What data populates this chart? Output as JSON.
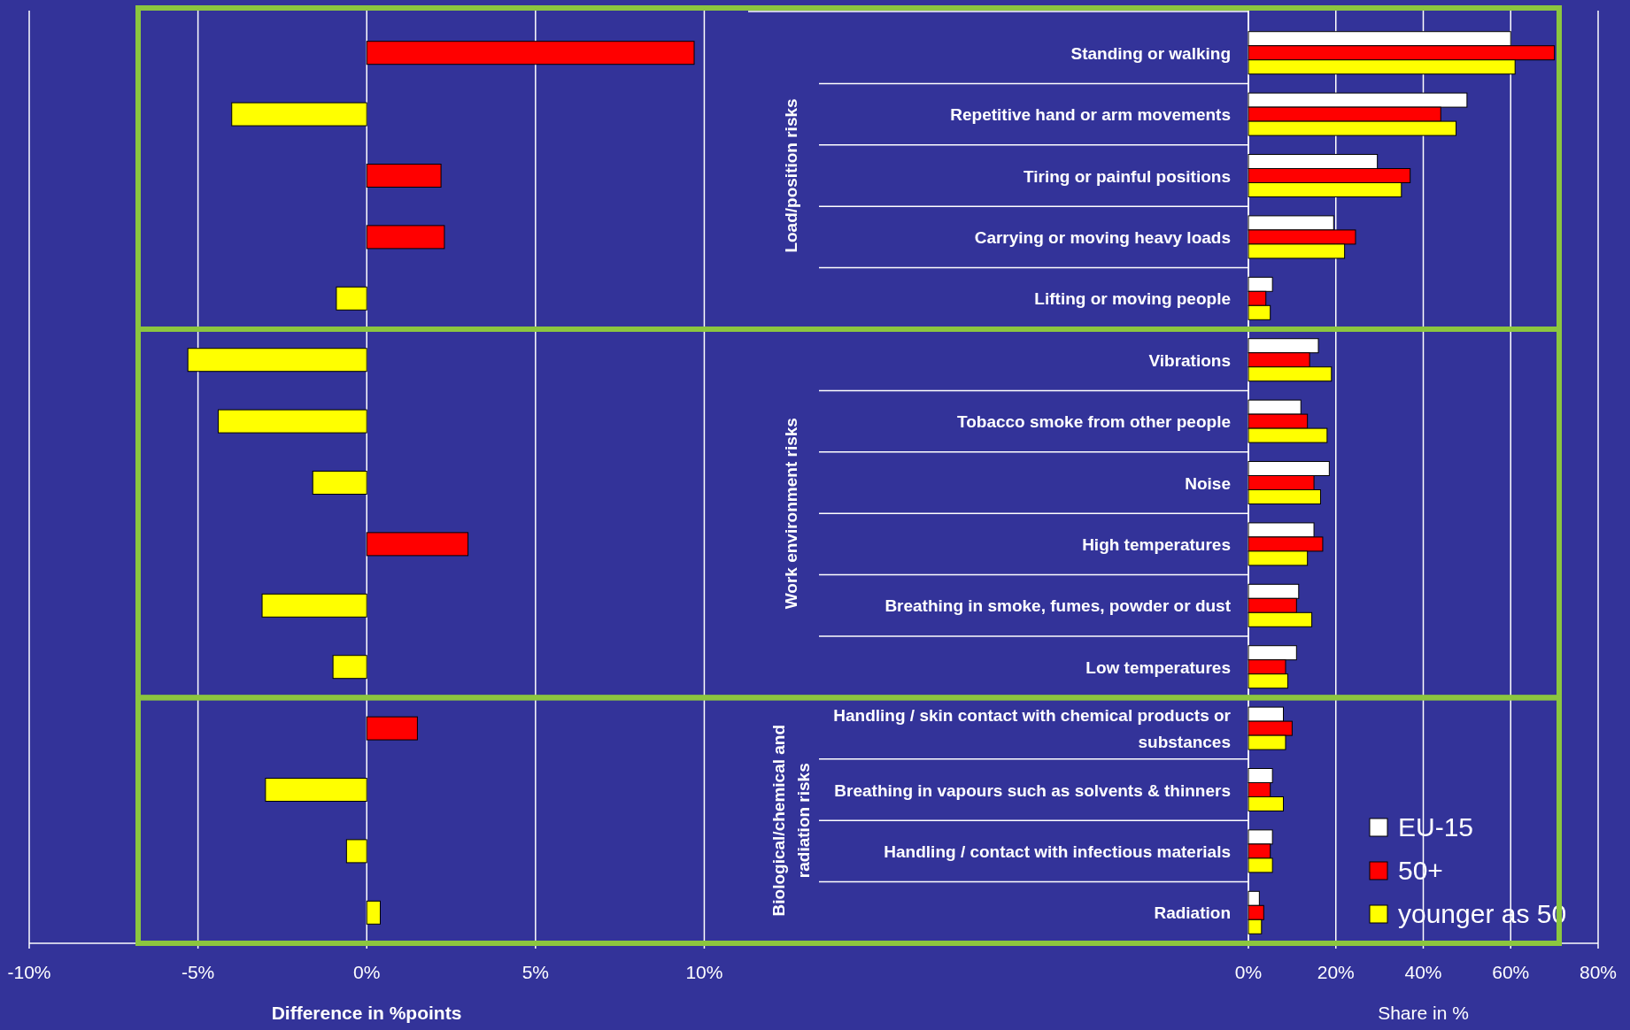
{
  "chart_data": [
    {
      "type": "bar",
      "orientation": "horizontal",
      "xlabel": "Difference in %points",
      "categories": [
        null,
        null,
        null,
        null,
        null,
        null,
        null,
        null,
        null,
        null,
        null,
        null,
        null,
        null,
        null
      ],
      "values": [
        9.7,
        -4.0,
        2.2,
        2.3,
        -0.9,
        -5.3,
        -4.4,
        -1.6,
        3.0,
        -3.1,
        -1.0,
        1.5,
        -3.0,
        -0.6,
        0.4
      ],
      "colors": [
        "#ff0000",
        "#ffff00",
        "#ff0000",
        "#ff0000",
        "#ffff00",
        "#ffff00",
        "#ffff00",
        "#ffff00",
        "#ff0000",
        "#ffff00",
        "#ffff00",
        "#ff0000",
        "#ffff00",
        "#ffff00",
        "#ffff00"
      ],
      "xlim": [
        -10,
        11.3
      ],
      "xticks": [
        {
          "value": -10,
          "label": "-10%"
        },
        {
          "value": -5,
          "label": "-5%"
        },
        {
          "value": 0,
          "label": "0%"
        },
        {
          "value": 5,
          "label": "5%"
        },
        {
          "value": 10,
          "label": "10%"
        }
      ],
      "grid": "x"
    },
    {
      "type": "bar",
      "orientation": "horizontal",
      "xlabel": "Share in %",
      "categories": [
        "Standing or walking",
        "Repetitive hand or arm movements",
        "Tiring or painful positions",
        "Carrying or moving heavy loads",
        "Lifting or moving people",
        "Vibrations",
        "Tobacco smoke from other people",
        "Noise",
        "High temperatures",
        "Breathing in smoke, fumes, powder or dust",
        "Low temperatures",
        "Handling / skin contact with chemical products or substances",
        "Breathing in vapours such as solvents & thinners",
        "Handling / contact with infectious materials",
        "Radiation"
      ],
      "series": [
        {
          "name": "EU-15",
          "color": "#ffffff",
          "values": [
            60,
            50,
            29.5,
            19.5,
            5.5,
            16,
            12,
            18.5,
            15,
            11.5,
            11,
            8,
            5.5,
            5.5,
            2.5
          ]
        },
        {
          "name": "50+",
          "color": "#ff0000",
          "values": [
            70,
            44,
            37,
            24.5,
            4,
            14,
            13.5,
            15,
            17,
            11,
            8.5,
            10,
            5,
            5,
            3.5
          ]
        },
        {
          "name": "younger as 50",
          "color": "#ffff00",
          "values": [
            61,
            47.5,
            35,
            22,
            5,
            19,
            18,
            16.5,
            13.5,
            14.5,
            9,
            8.5,
            8,
            5.5,
            3
          ]
        }
      ],
      "xlim": [
        0,
        80
      ],
      "xticks": [
        {
          "value": 0,
          "label": "0%"
        },
        {
          "value": 20,
          "label": "20%"
        },
        {
          "value": 40,
          "label": "40%"
        },
        {
          "value": 60,
          "label": "60%"
        },
        {
          "value": 80,
          "label": "80%"
        }
      ],
      "grid": "x",
      "legend": "bottom right",
      "annotations": [
        "Load/position risks",
        "Work environment risks",
        "Biological/chemical and radiation risks"
      ]
    }
  ]
}
